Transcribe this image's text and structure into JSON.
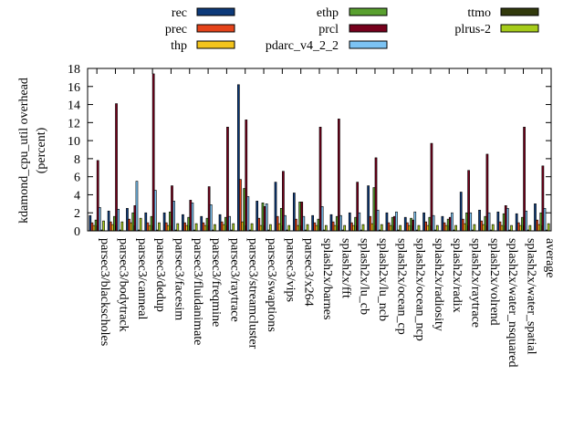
{
  "chart_data": {
    "type": "bar",
    "title": "",
    "ylabel": "kdamond_cpu_util overhead",
    "ylabel_unit": "(percent)",
    "xlabel": "",
    "ylim": [
      0,
      18
    ],
    "yticks": [
      0,
      2,
      4,
      6,
      8,
      10,
      12,
      14,
      16,
      18
    ],
    "grid": false,
    "legend_position": "top",
    "categories": [
      "parsec3/blackscholes",
      "parsec3/bodytrack",
      "parsec3/canneal",
      "parsec3/dedup",
      "parsec3/facesim",
      "parsec3/fluidanimate",
      "parsec3/freqmine",
      "parsec3/raytrace",
      "parsec3/streamcluster",
      "parsec3/swaptions",
      "parsec3/vips",
      "parsec3/x264",
      "splash2x/barnes",
      "splash2x/fft",
      "splash2x/lu_cb",
      "splash2x/lu_ncb",
      "splash2x/ocean_cp",
      "splash2x/ocean_ncp",
      "splash2x/radiosity",
      "splash2x/radix",
      "splash2x/raytrace",
      "splash2x/volrend",
      "splash2x/water_nsquared",
      "splash2x/water_spatial",
      "average"
    ],
    "series": [
      {
        "name": "rec",
        "color": "#0d3a7a",
        "values": [
          1.7,
          2.2,
          2.5,
          2.0,
          2.0,
          1.8,
          1.6,
          1.8,
          16.2,
          3.3,
          5.4,
          4.2,
          1.7,
          1.8,
          2.0,
          5.0,
          2.0,
          1.5,
          2.0,
          1.6,
          4.3,
          2.3,
          2.1,
          1.9,
          3.0
        ]
      },
      {
        "name": "prec",
        "color": "#e5431a",
        "values": [
          0.9,
          1.0,
          1.3,
          0.9,
          0.9,
          0.9,
          0.9,
          1.0,
          5.7,
          1.4,
          1.6,
          1.3,
          0.9,
          1.0,
          0.9,
          1.6,
          0.9,
          0.9,
          1.0,
          0.9,
          1.3,
          1.1,
          1.0,
          0.9,
          1.2
        ]
      },
      {
        "name": "thp",
        "color": "#f3c41c",
        "values": [
          0.6,
          0.7,
          0.9,
          0.6,
          0.6,
          0.6,
          0.6,
          0.7,
          1.0,
          0.6,
          0.8,
          0.6,
          0.6,
          0.6,
          0.6,
          0.8,
          0.6,
          0.6,
          0.6,
          0.6,
          0.8,
          0.7,
          0.6,
          0.6,
          0.7
        ]
      },
      {
        "name": "ethp",
        "color": "#59a02f",
        "values": [
          1.2,
          1.6,
          2.0,
          1.6,
          2.1,
          1.5,
          1.4,
          1.5,
          4.7,
          3.1,
          2.5,
          3.2,
          1.3,
          1.6,
          1.5,
          4.8,
          1.5,
          1.4,
          1.5,
          1.3,
          2.0,
          1.6,
          1.9,
          1.5,
          2.0
        ]
      },
      {
        "name": "prcl",
        "color": "#76001c",
        "values": [
          7.8,
          14.1,
          2.8,
          17.4,
          5.0,
          3.4,
          4.9,
          11.5,
          12.3,
          2.7,
          6.6,
          3.2,
          11.5,
          12.4,
          5.4,
          8.1,
          1.6,
          1.2,
          9.7,
          1.5,
          6.7,
          8.5,
          2.8,
          11.5,
          7.2
        ]
      },
      {
        "name": "pdarc_v4_2_2",
        "color": "#7cc3f3",
        "values": [
          2.6,
          2.4,
          5.5,
          4.5,
          3.3,
          3.1,
          2.9,
          1.6,
          3.8,
          3.0,
          1.7,
          1.6,
          2.7,
          1.7,
          2.0,
          2.3,
          2.1,
          2.1,
          1.7,
          2.0,
          2.0,
          2.0,
          2.5,
          2.2,
          2.5
        ]
      },
      {
        "name": "ttmo",
        "color": "#323a0c",
        "values": [
          0.1,
          0.1,
          0.1,
          0.1,
          0.1,
          0.1,
          0.1,
          0.1,
          0.1,
          0.1,
          0.1,
          0.1,
          0.1,
          0.1,
          0.1,
          0.1,
          0.1,
          0.1,
          0.1,
          0.1,
          0.1,
          0.1,
          0.1,
          0.1,
          0.1
        ]
      },
      {
        "name": "plrus-2",
        "color": "#a6cc1a",
        "values": [
          1.1,
          1.0,
          1.4,
          0.9,
          0.8,
          0.8,
          0.7,
          0.8,
          0.8,
          0.7,
          0.6,
          0.7,
          0.6,
          0.6,
          0.7,
          0.7,
          0.6,
          0.6,
          0.6,
          0.6,
          0.7,
          0.7,
          0.6,
          0.6,
          0.8
        ]
      }
    ]
  }
}
